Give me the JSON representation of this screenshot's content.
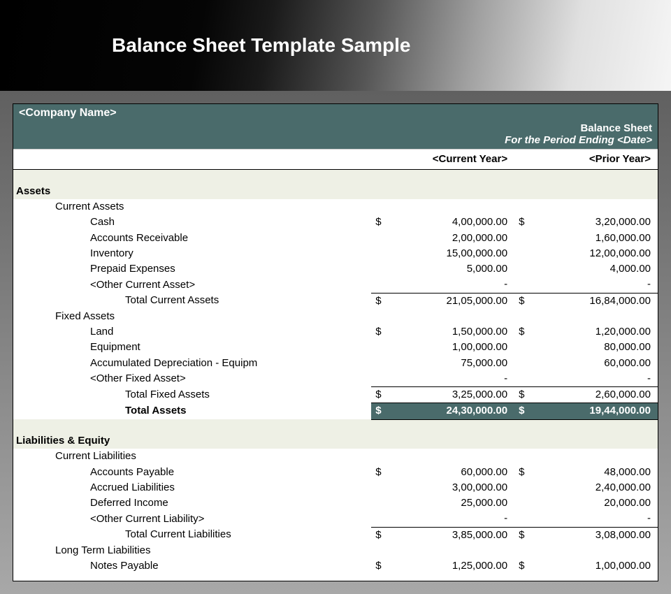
{
  "banner": {
    "title": "Balance Sheet Template Sample"
  },
  "header": {
    "company": "<Company Name>",
    "title": "Balance Sheet",
    "period": "For the Period Ending <Date>"
  },
  "columns": {
    "current": "<Current Year>",
    "prior": "<Prior Year>"
  },
  "colors": {
    "teal": "#4a6b6b",
    "section_bg": "#eef0e5",
    "banner_text": "#ffffff",
    "body_bg": "#ffffff"
  },
  "assets": {
    "label": "Assets",
    "current": {
      "label": "Current Assets",
      "items": [
        {
          "label": "Cash",
          "sym": "$",
          "cy": "4,00,000.00",
          "py": "3,20,000.00"
        },
        {
          "label": "Accounts Receivable",
          "sym": "",
          "cy": "2,00,000.00",
          "py": "1,60,000.00"
        },
        {
          "label": "Inventory",
          "sym": "",
          "cy": "15,00,000.00",
          "py": "12,00,000.00"
        },
        {
          "label": "Prepaid Expenses",
          "sym": "",
          "cy": "5,000.00",
          "py": "4,000.00"
        },
        {
          "label": "<Other Current Asset>",
          "sym": "",
          "cy": "-",
          "py": "-"
        }
      ],
      "total": {
        "label": "Total Current Assets",
        "sym": "$",
        "cy": "21,05,000.00",
        "py": "16,84,000.00"
      }
    },
    "fixed": {
      "label": "Fixed Assets",
      "items": [
        {
          "label": "Land",
          "sym": "$",
          "cy": "1,50,000.00",
          "py": "1,20,000.00"
        },
        {
          "label": "Equipment",
          "sym": "",
          "cy": "1,00,000.00",
          "py": "80,000.00"
        },
        {
          "label": "Accumulated Depreciation - Equipm",
          "sym": "",
          "cy": "75,000.00",
          "py": "60,000.00"
        },
        {
          "label": "<Other Fixed Asset>",
          "sym": "",
          "cy": "-",
          "py": "-"
        }
      ],
      "total": {
        "label": "Total Fixed Assets",
        "sym": "$",
        "cy": "3,25,000.00",
        "py": "2,60,000.00"
      }
    },
    "grand": {
      "label": "Total Assets",
      "sym": "$",
      "cy": "24,30,000.00",
      "py": "19,44,000.00"
    }
  },
  "liab": {
    "label": "Liabilities & Equity",
    "current": {
      "label": "Current Liabilities",
      "items": [
        {
          "label": "Accounts Payable",
          "sym": "$",
          "cy": "60,000.00",
          "py": "48,000.00"
        },
        {
          "label": "Accrued Liabilities",
          "sym": "",
          "cy": "3,00,000.00",
          "py": "2,40,000.00"
        },
        {
          "label": "Deferred Income",
          "sym": "",
          "cy": "25,000.00",
          "py": "20,000.00"
        },
        {
          "label": "<Other Current Liability>",
          "sym": "",
          "cy": "-",
          "py": "-"
        }
      ],
      "total": {
        "label": "Total Current Liabilities",
        "sym": "$",
        "cy": "3,85,000.00",
        "py": "3,08,000.00"
      }
    },
    "long": {
      "label": "Long Term Liabilities",
      "items": [
        {
          "label": "Notes Payable",
          "sym": "$",
          "cy": "1,25,000.00",
          "py": "1,00,000.00"
        }
      ]
    }
  }
}
